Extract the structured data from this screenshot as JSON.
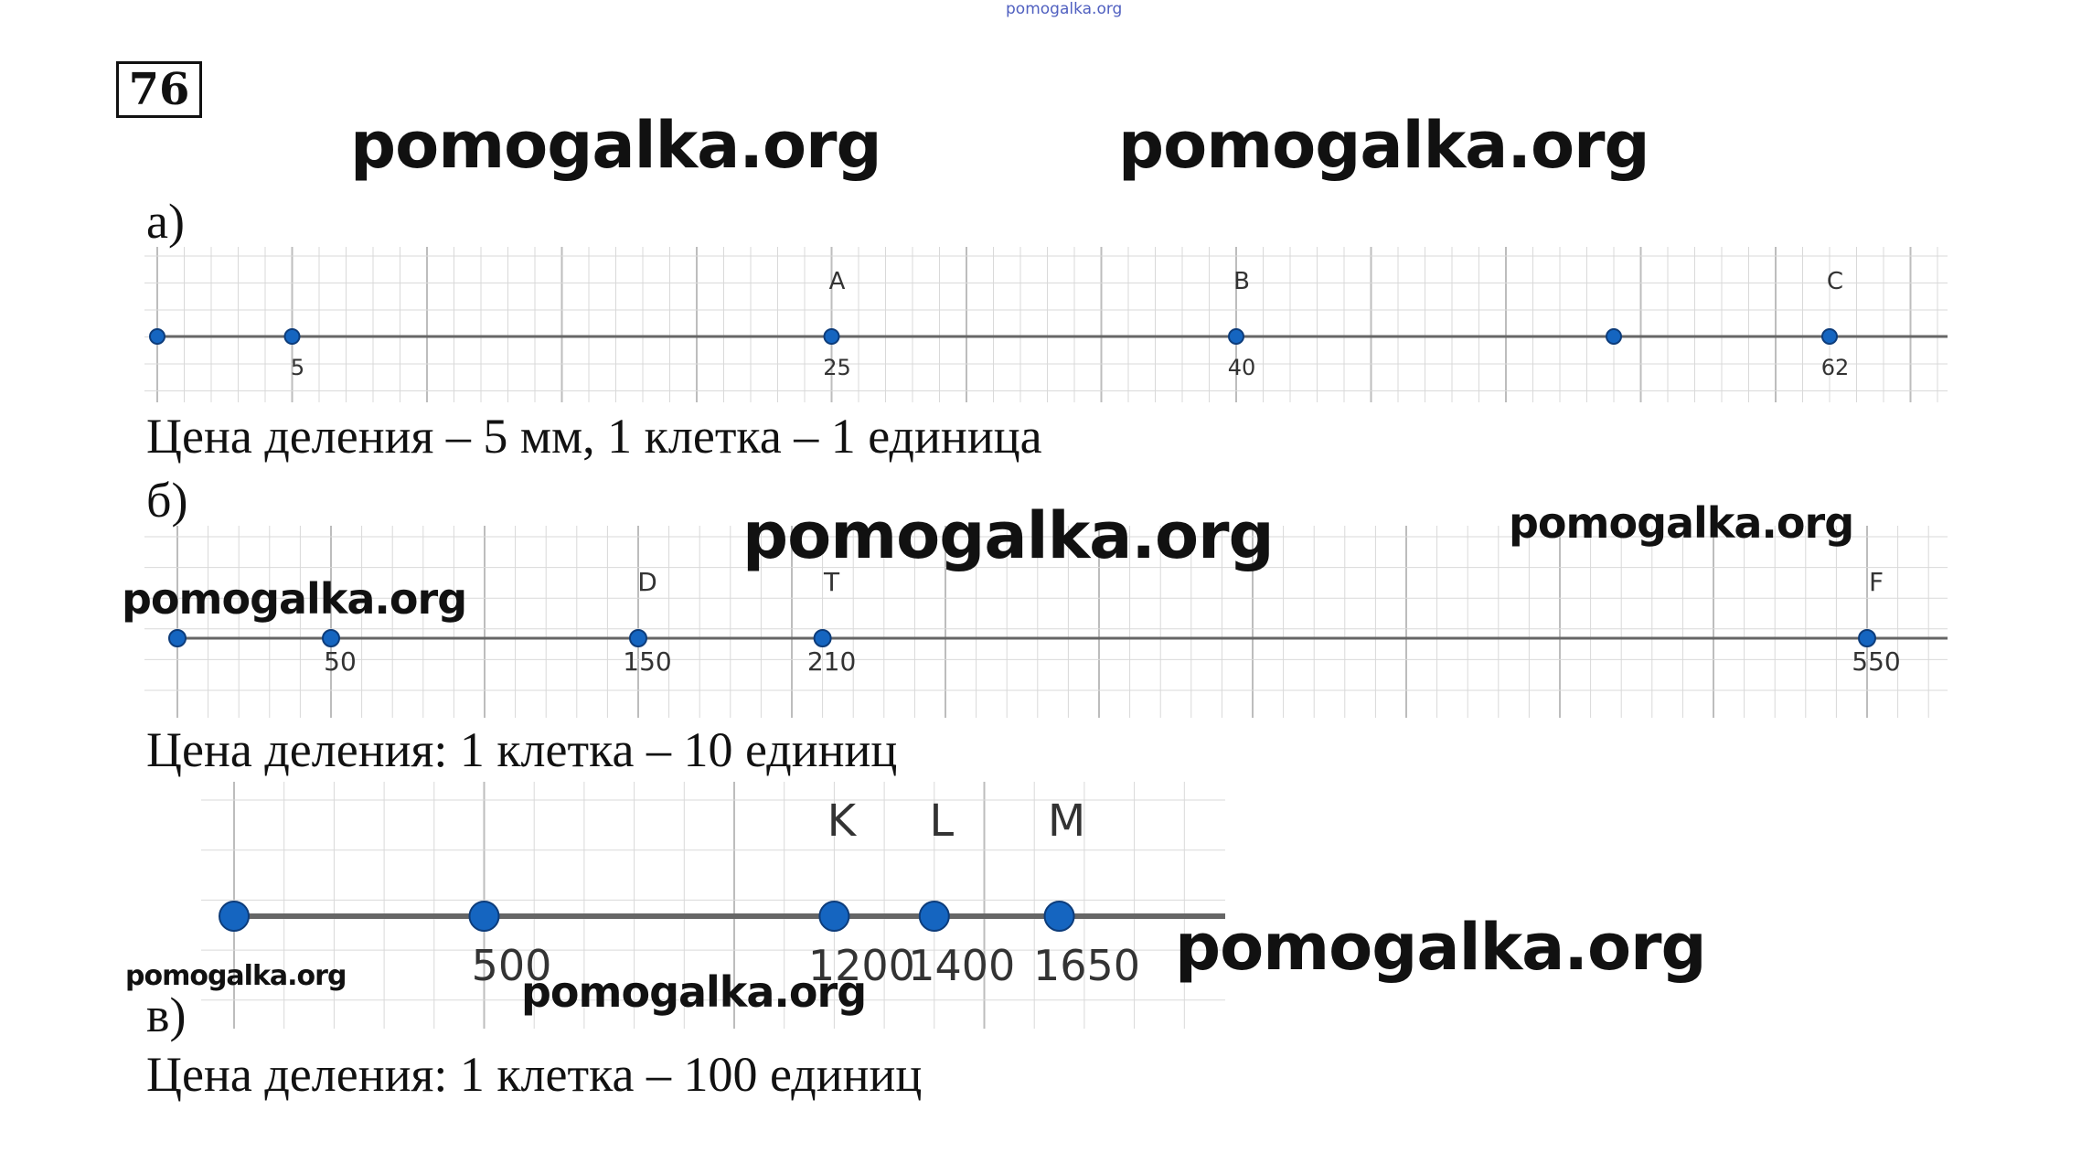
{
  "header": {
    "small_watermark": "pomogalka.org"
  },
  "problem": {
    "number": "76"
  },
  "watermarks": {
    "w1": "pomogalka.org",
    "w2": "pomogalka.org",
    "w3": "pomogalka.org",
    "w4": "pomogalka.org",
    "w5": "pomogalka.org",
    "w6": "pomogalka.org",
    "w7": "pomogalka.org",
    "w8": "pomogalka.org"
  },
  "part_a": {
    "label": "а)",
    "caption": "Цена деления – 5 мм, 1 клетка – 1 единица",
    "points": [
      {
        "value": 0,
        "tick_label": "",
        "letter": ""
      },
      {
        "value": 5,
        "tick_label": "5",
        "letter": ""
      },
      {
        "value": 25,
        "tick_label": "25",
        "letter": "A"
      },
      {
        "value": 40,
        "tick_label": "40",
        "letter": "B"
      },
      {
        "value": 54,
        "tick_label": "",
        "letter": ""
      },
      {
        "value": 62,
        "tick_label": "62",
        "letter": "C"
      }
    ]
  },
  "part_b": {
    "label": "б)",
    "caption": "Цена деления: 1 клетка – 10 единиц",
    "points": [
      {
        "value": 0,
        "tick_label": "",
        "letter": ""
      },
      {
        "value": 50,
        "tick_label": "50",
        "letter": ""
      },
      {
        "value": 150,
        "tick_label": "150",
        "letter": "D"
      },
      {
        "value": 210,
        "tick_label": "210",
        "letter": "T"
      },
      {
        "value": 550,
        "tick_label": "550",
        "letter": "F"
      }
    ]
  },
  "part_c": {
    "label": "в)",
    "caption": "Цена деления: 1 клетка – 100 единиц",
    "points": [
      {
        "value": 0,
        "tick_label": "",
        "letter": ""
      },
      {
        "value": 500,
        "tick_label": "500",
        "letter": ""
      },
      {
        "value": 1200,
        "tick_label": "1200",
        "letter": "K"
      },
      {
        "value": 1400,
        "tick_label": "1400",
        "letter": "L"
      },
      {
        "value": 1650,
        "tick_label": "1650",
        "letter": "M"
      }
    ]
  },
  "colors": {
    "point": "#1565c0",
    "point_stroke": "#0d3c7a",
    "axis": "#666666",
    "grid": "#d9d9d9"
  }
}
